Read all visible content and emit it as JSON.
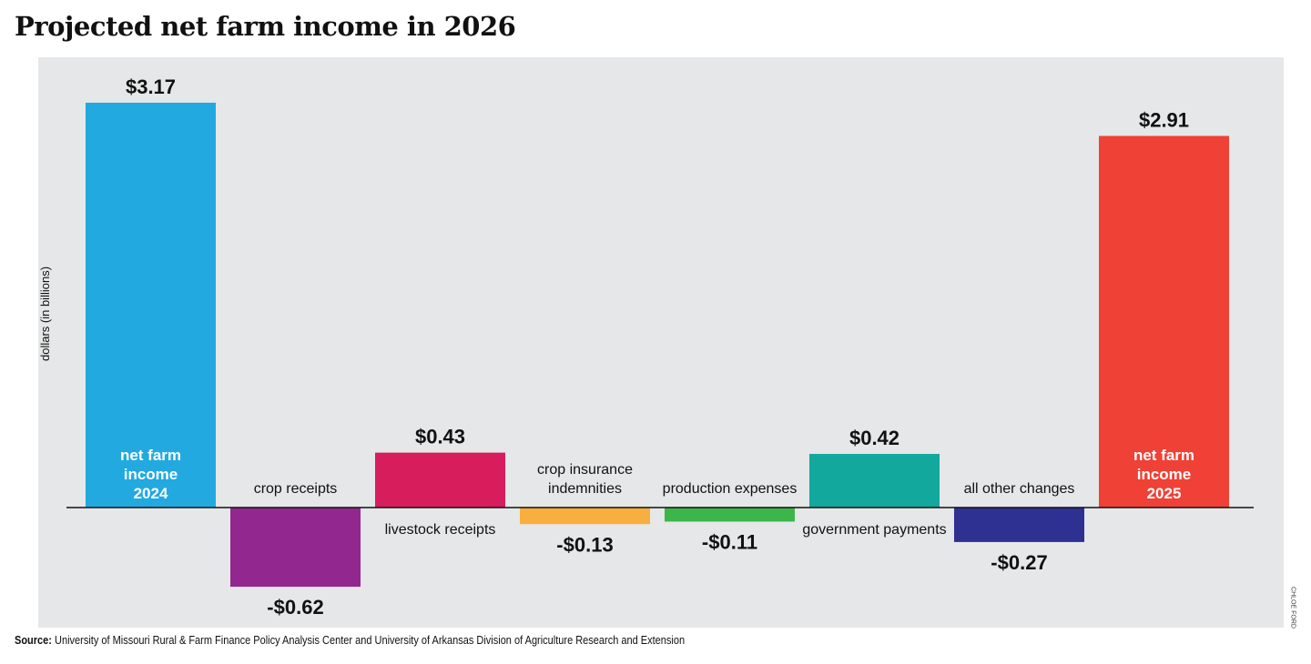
{
  "chart_data": {
    "type": "bar",
    "subtype": "waterfall-style",
    "title": "Projected net farm income in 2026",
    "ylabel": "dollars (in billions)",
    "categories": [
      "net farm income 2024",
      "crop receipts",
      "livestock receipts",
      "crop insurance indemnities",
      "production expenses",
      "government payments",
      "all other changes",
      "net farm income 2025"
    ],
    "category_lines": [
      [
        "net farm",
        "income",
        "2024"
      ],
      [
        "crop receipts"
      ],
      [
        "livestock receipts"
      ],
      [
        "crop insurance",
        "indemnities"
      ],
      [
        "production expenses"
      ],
      [
        "government payments"
      ],
      [
        "all other changes"
      ],
      [
        "net farm",
        "income",
        "2025"
      ]
    ],
    "values": [
      3.17,
      -0.62,
      0.43,
      -0.13,
      -0.11,
      0.42,
      -0.27,
      2.91
    ],
    "value_labels": [
      "$3.17",
      "-$0.62",
      "$0.43",
      "-$0.13",
      "-$0.11",
      "$0.42",
      "-$0.27",
      "$2.91"
    ],
    "colors": [
      "#22a9e0",
      "#92278f",
      "#d71d5b",
      "#f9ae40",
      "#3cb64a",
      "#12a89d",
      "#2e3192",
      "#ef4136"
    ],
    "ylim": [
      -0.9,
      3.5
    ],
    "grid": false,
    "legend": "none",
    "background": "#e6e7e8"
  },
  "source_label": "Source:",
  "source_text": "University of Missouri Rural & Farm Finance Policy Analysis Center and University of Arkansas Division of Agriculture Research and Extension",
  "credit": "CHLOE FORD"
}
